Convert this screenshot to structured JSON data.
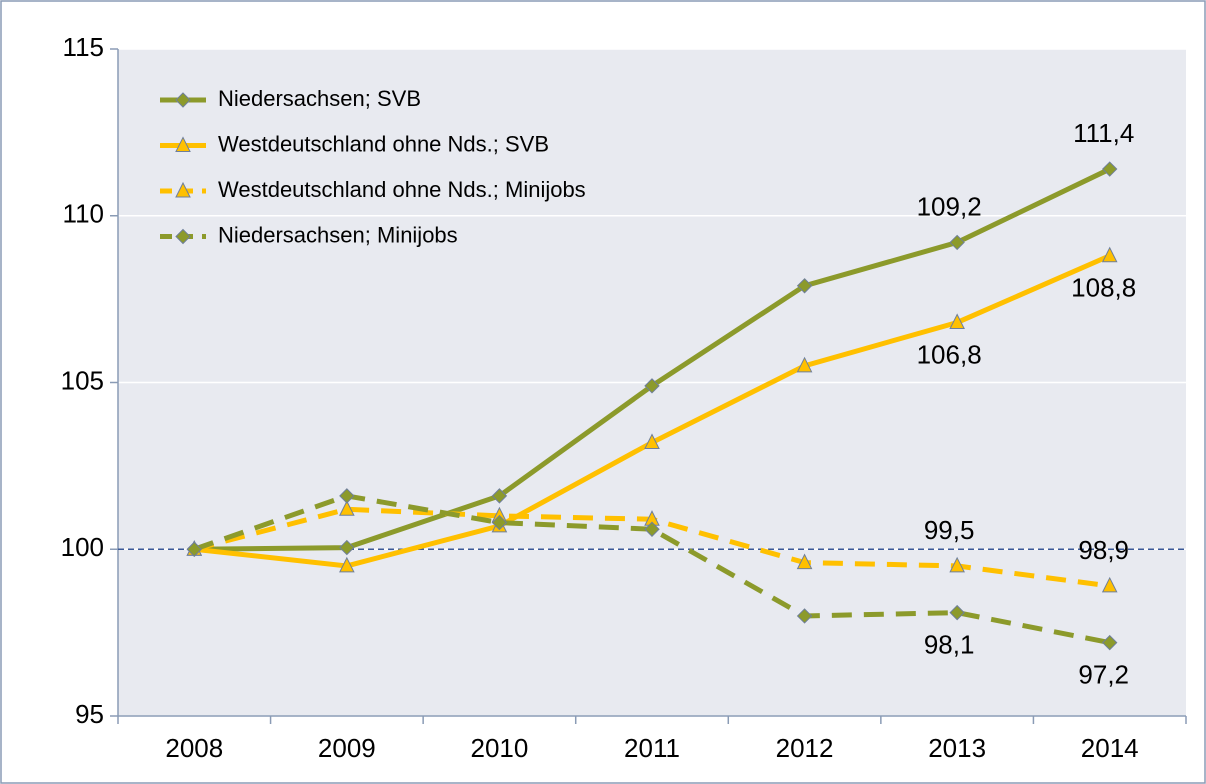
{
  "chart_data": {
    "type": "line",
    "categories": [
      "2008",
      "2009",
      "2010",
      "2011",
      "2012",
      "2013",
      "2014"
    ],
    "series": [
      {
        "name": "Niedersachsen; SVB",
        "color": "#8c9a2b",
        "marker": "diamond",
        "dashed": false,
        "values": [
          100,
          100.05,
          101.6,
          104.9,
          107.9,
          109.2,
          111.4
        ],
        "value_labels": [
          null,
          null,
          null,
          null,
          null,
          "109,2",
          "111,4"
        ]
      },
      {
        "name": "Westdeutschland ohne Nds.; SVB",
        "color": "#ffc000",
        "marker": "triangle",
        "dashed": false,
        "values": [
          100,
          99.5,
          100.7,
          103.2,
          105.5,
          106.8,
          108.8
        ],
        "value_labels": [
          null,
          null,
          null,
          null,
          null,
          "106,8",
          "108,8"
        ]
      },
      {
        "name": "Westdeutschland ohne Nds.; Minijobs",
        "color": "#ffc000",
        "marker": "triangle",
        "dashed": true,
        "values": [
          100,
          101.2,
          101.0,
          100.9,
          99.6,
          99.5,
          98.9
        ],
        "value_labels": [
          null,
          null,
          null,
          null,
          null,
          "99,5",
          "98,9"
        ]
      },
      {
        "name": "Niedersachsen; Minijobs",
        "color": "#8c9a2b",
        "marker": "diamond",
        "dashed": true,
        "values": [
          100,
          101.6,
          100.8,
          100.6,
          98.0,
          98.1,
          97.2
        ],
        "value_labels": [
          null,
          null,
          null,
          null,
          null,
          "98,1",
          "97,2"
        ]
      }
    ],
    "ylim": [
      95,
      115
    ],
    "yticks": [
      95,
      100,
      105,
      110,
      115
    ],
    "grid": true,
    "reference_line": 100,
    "legend": "upper left"
  }
}
